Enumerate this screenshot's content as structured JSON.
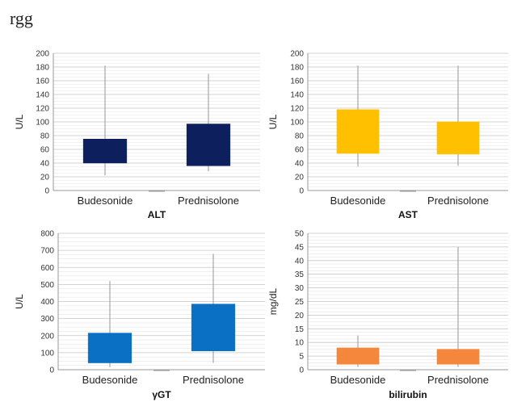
{
  "heading": "rgg",
  "chart_data": [
    {
      "type": "box",
      "xlabel": "ALT",
      "ylabel": "U/L",
      "ylim": [
        0,
        200
      ],
      "yticks": [
        0,
        20,
        40,
        60,
        80,
        100,
        120,
        140,
        160,
        180,
        200
      ],
      "categories": [
        "Budesonide",
        "Prednisolone"
      ],
      "color": "#0d1f5c",
      "boxes": [
        {
          "min": 22,
          "q1": 40,
          "q3": 75,
          "max": 182
        },
        {
          "min": 28,
          "q1": 36,
          "q3": 97,
          "max": 170
        }
      ]
    },
    {
      "type": "box",
      "xlabel": "AST",
      "ylabel": "U/L",
      "ylim": [
        0,
        200
      ],
      "yticks": [
        0,
        20,
        40,
        60,
        80,
        100,
        120,
        140,
        160,
        180,
        200
      ],
      "categories": [
        "Budesonide",
        "Prednisolone"
      ],
      "color": "#ffc000",
      "boxes": [
        {
          "min": 35,
          "q1": 54,
          "q3": 118,
          "max": 182
        },
        {
          "min": 36,
          "q1": 53,
          "q3": 100,
          "max": 182
        }
      ]
    },
    {
      "type": "box",
      "xlabel": "γGT",
      "ylabel": "U/L",
      "ylim": [
        0,
        800
      ],
      "yticks": [
        0,
        100,
        200,
        300,
        400,
        500,
        600,
        700,
        800
      ],
      "categories": [
        "Budesonide",
        "Prednisolone"
      ],
      "color": "#0a70c4",
      "boxes": [
        {
          "min": 15,
          "q1": 40,
          "q3": 215,
          "max": 520
        },
        {
          "min": 40,
          "q1": 110,
          "q3": 385,
          "max": 680
        }
      ]
    },
    {
      "type": "box",
      "xlabel": "bilirubin",
      "ylabel": "mg/dL",
      "ylim": [
        0,
        50
      ],
      "yticks": [
        0,
        5,
        10,
        15,
        20,
        25,
        30,
        35,
        40,
        45,
        50
      ],
      "categories": [
        "Budesonide",
        "Prednisolone"
      ],
      "color": "#f5873c",
      "boxes": [
        {
          "min": 1,
          "q1": 2,
          "q3": 8,
          "max": 12.5
        },
        {
          "min": 1,
          "q1": 2,
          "q3": 7.5,
          "max": 45
        }
      ]
    }
  ]
}
